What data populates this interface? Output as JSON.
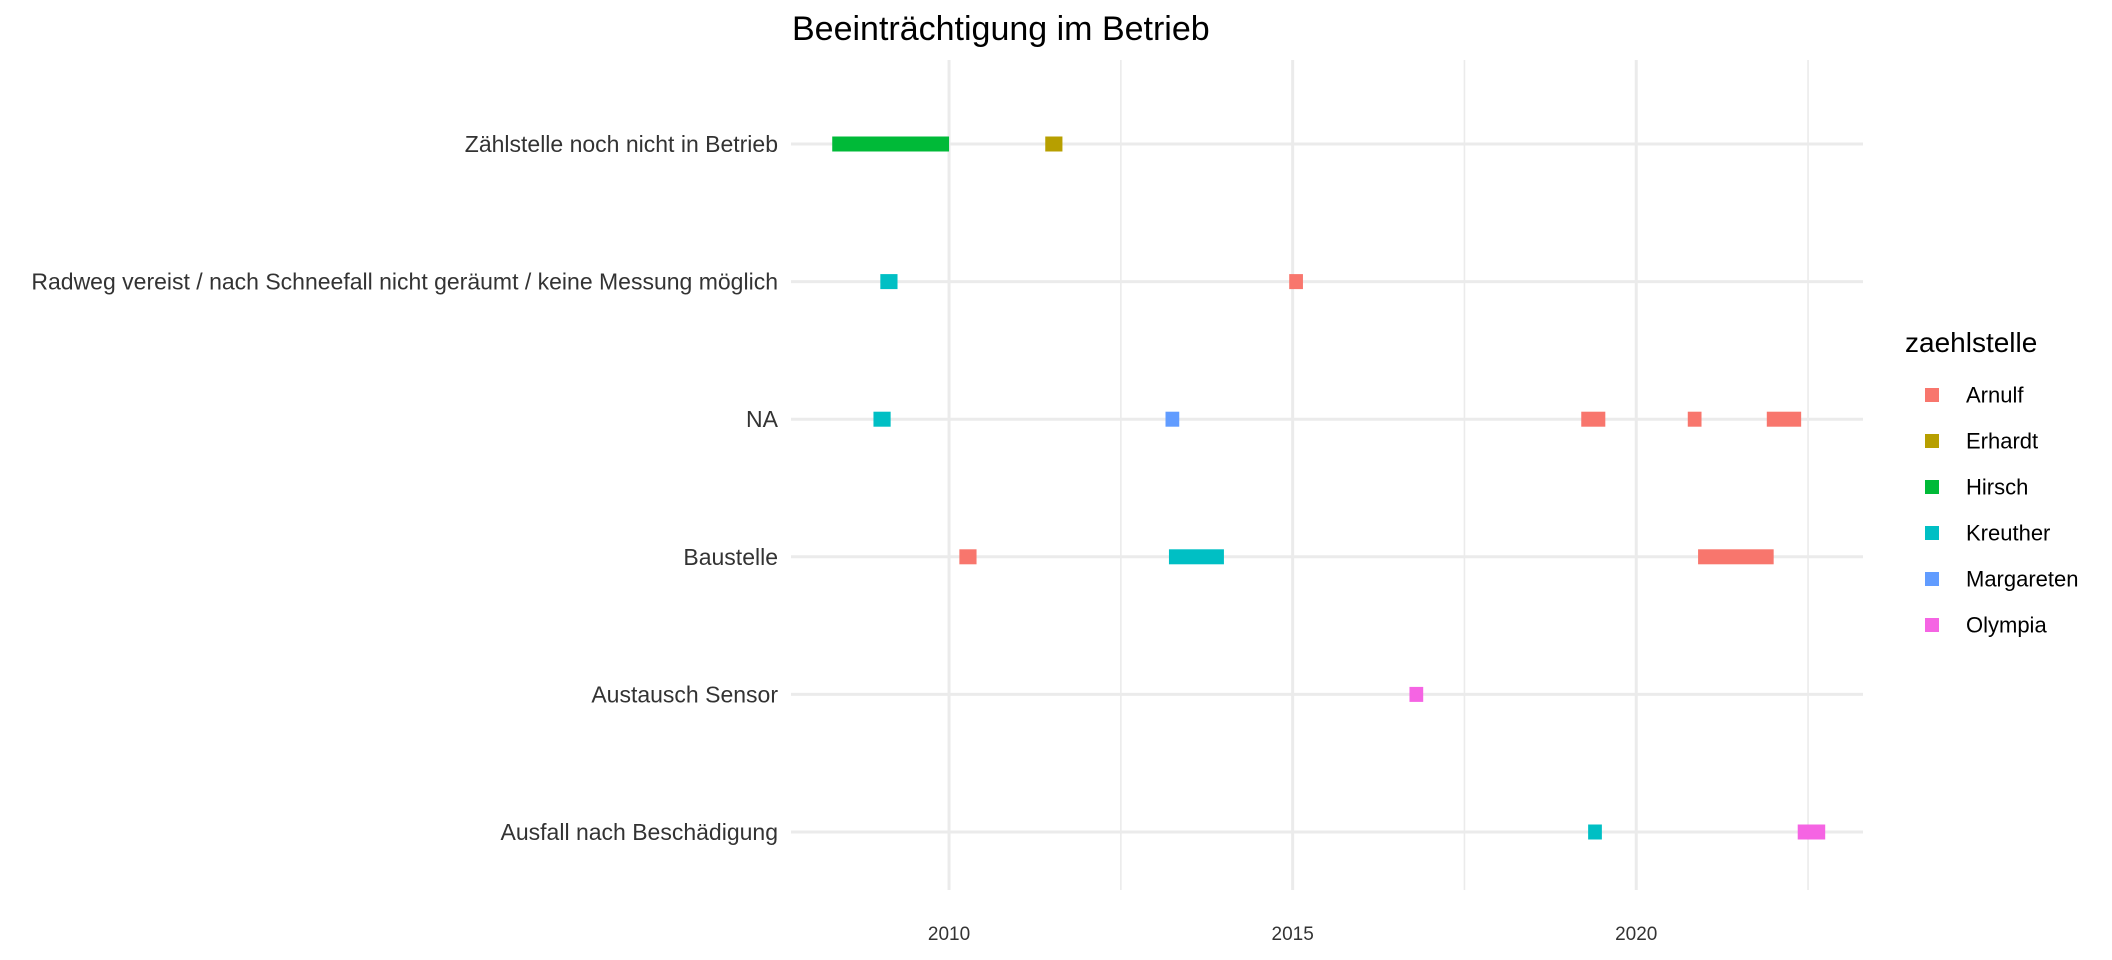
{
  "chart_data": {
    "type": "timeline",
    "title": "Beeinträchtigung im Betrieb",
    "xlabel": "",
    "ylabel": "",
    "xlim": [
      2007.7,
      2023.3
    ],
    "x_major_ticks": [
      2010,
      2015,
      2020
    ],
    "x_major_tick_labels": [
      "2010",
      "2015",
      "2020"
    ],
    "x_minor_ticks": [
      2012.5,
      2017.5,
      2022.5
    ],
    "grid": true,
    "categories": [
      "Zählstelle noch nicht in Betrieb",
      "Radweg vereist / nach Schneefall nicht geräumt / keine Messung möglich",
      "NA",
      "Baustelle",
      "Austausch Sensor",
      "Ausfall nach Beschädigung"
    ],
    "legend": {
      "title": "zaehlstelle",
      "position": "right",
      "entries": [
        {
          "name": "Arnulf",
          "color": "#F8766D"
        },
        {
          "name": "Erhardt",
          "color": "#B79F00"
        },
        {
          "name": "Hirsch",
          "color": "#00BA38"
        },
        {
          "name": "Kreuther",
          "color": "#00BFC4"
        },
        {
          "name": "Margareten",
          "color": "#619CFF"
        },
        {
          "name": "Olympia",
          "color": "#F564E3"
        }
      ]
    },
    "segments": [
      {
        "category": "Zählstelle noch nicht in Betrieb",
        "series": "Hirsch",
        "start": 2008.3,
        "end": 2010.0
      },
      {
        "category": "Zählstelle noch nicht in Betrieb",
        "series": "Erhardt",
        "start": 2011.4,
        "end": 2011.65
      },
      {
        "category": "Radweg vereist / nach Schneefall nicht geräumt / keine Messung möglich",
        "series": "Kreuther",
        "start": 2009.0,
        "end": 2009.25
      },
      {
        "category": "Radweg vereist / nach Schneefall nicht geräumt / keine Messung möglich",
        "series": "Arnulf",
        "start": 2014.95,
        "end": 2015.15
      },
      {
        "category": "NA",
        "series": "Kreuther",
        "start": 2008.9,
        "end": 2009.15
      },
      {
        "category": "NA",
        "series": "Margareten",
        "start": 2013.15,
        "end": 2013.35
      },
      {
        "category": "NA",
        "series": "Arnulf",
        "start": 2019.2,
        "end": 2019.55
      },
      {
        "category": "NA",
        "series": "Arnulf",
        "start": 2020.75,
        "end": 2020.95
      },
      {
        "category": "NA",
        "series": "Arnulf",
        "start": 2021.9,
        "end": 2022.4
      },
      {
        "category": "Baustelle",
        "series": "Arnulf",
        "start": 2010.15,
        "end": 2010.4
      },
      {
        "category": "Baustelle",
        "series": "Kreuther",
        "start": 2013.2,
        "end": 2014.0
      },
      {
        "category": "Baustelle",
        "series": "Arnulf",
        "start": 2020.9,
        "end": 2022.0
      },
      {
        "category": "Austausch Sensor",
        "series": "Olympia",
        "start": 2016.7,
        "end": 2016.9
      },
      {
        "category": "Ausfall nach Beschädigung",
        "series": "Kreuther",
        "start": 2019.3,
        "end": 2019.5
      },
      {
        "category": "Ausfall nach Beschädigung",
        "series": "Olympia",
        "start": 2022.35,
        "end": 2022.75
      }
    ]
  }
}
